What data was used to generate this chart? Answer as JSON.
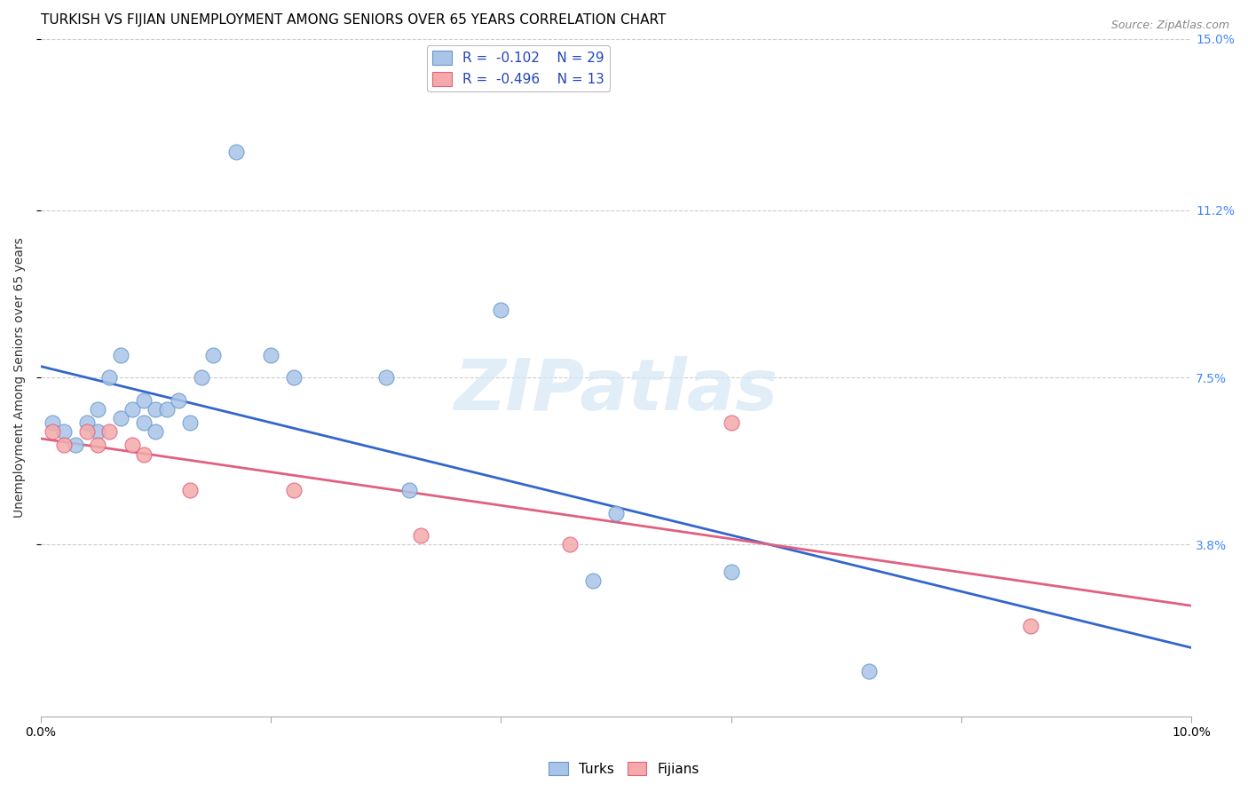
{
  "title": "TURKISH VS FIJIAN UNEMPLOYMENT AMONG SENIORS OVER 65 YEARS CORRELATION CHART",
  "source": "Source: ZipAtlas.com",
  "ylabel": "Unemployment Among Seniors over 65 years",
  "xlim": [
    0.0,
    0.1
  ],
  "ylim": [
    0.0,
    0.15
  ],
  "xticks": [
    0.0,
    0.02,
    0.04,
    0.06,
    0.08,
    0.1
  ],
  "xticklabels": [
    "0.0%",
    "",
    "",
    "",
    "",
    "10.0%"
  ],
  "ytick_positions": [
    0.038,
    0.075,
    0.112,
    0.15
  ],
  "ytick_labels": [
    "3.8%",
    "7.5%",
    "11.2%",
    "15.0%"
  ],
  "background_color": "#ffffff",
  "grid_color": "#cccccc",
  "watermark": "ZIPatlas",
  "turks_color": "#aac4e8",
  "turks_edge_color": "#6699cc",
  "fijians_color": "#f4aaaa",
  "fijians_edge_color": "#e06080",
  "line_turks_color": "#3366cc",
  "line_fijians_color": "#e06080",
  "legend_R_turks": "R =  -0.102",
  "legend_N_turks": "N = 29",
  "legend_R_fijians": "R =  -0.496",
  "legend_N_fijians": "N = 13",
  "turks_x": [
    0.001,
    0.002,
    0.003,
    0.004,
    0.005,
    0.005,
    0.006,
    0.007,
    0.007,
    0.008,
    0.009,
    0.009,
    0.01,
    0.01,
    0.011,
    0.012,
    0.013,
    0.014,
    0.015,
    0.017,
    0.02,
    0.022,
    0.03,
    0.032,
    0.04,
    0.048,
    0.05,
    0.06,
    0.072
  ],
  "turks_y": [
    0.065,
    0.063,
    0.06,
    0.065,
    0.068,
    0.063,
    0.075,
    0.08,
    0.066,
    0.068,
    0.07,
    0.065,
    0.068,
    0.063,
    0.068,
    0.07,
    0.065,
    0.075,
    0.08,
    0.125,
    0.08,
    0.075,
    0.075,
    0.05,
    0.09,
    0.03,
    0.045,
    0.032,
    0.01
  ],
  "fijians_x": [
    0.001,
    0.002,
    0.004,
    0.005,
    0.006,
    0.008,
    0.009,
    0.013,
    0.022,
    0.033,
    0.046,
    0.06,
    0.086
  ],
  "fijians_y": [
    0.063,
    0.06,
    0.063,
    0.06,
    0.063,
    0.06,
    0.058,
    0.05,
    0.05,
    0.04,
    0.038,
    0.065,
    0.02
  ],
  "turks_scatter_size": 150,
  "fijians_scatter_size": 150,
  "title_fontsize": 11,
  "axis_fontsize": 10,
  "tick_fontsize": 10,
  "right_tick_color": "#4488ff",
  "ylabel_color": "#333333"
}
